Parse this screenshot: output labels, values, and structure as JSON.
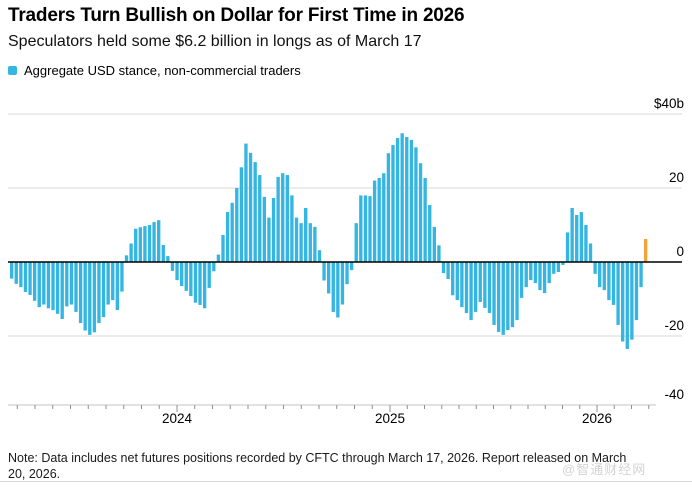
{
  "header": {
    "title": "Traders Turn Bullish on Dollar for First Time in 2026",
    "subtitle": "Speculators held some $6.2 billion in longs as of March 17"
  },
  "legend": {
    "label": "Aggregate USD stance, non-commercial traders",
    "swatch_color": "#35b6e2"
  },
  "chart_data": {
    "type": "bar",
    "title": "Aggregate USD stance, non-commercial traders",
    "ylabel": "",
    "xlabel": "",
    "unit": "$ billions",
    "ylim": [
      -40,
      40
    ],
    "grid": true,
    "legend_position": "top-left",
    "y_ticks": [
      {
        "value": 40,
        "label": "$40b"
      },
      {
        "value": 20,
        "label": "20"
      },
      {
        "value": 0,
        "label": "0"
      },
      {
        "value": -20,
        "label": "-20"
      },
      {
        "value": -40,
        "label": "-40"
      }
    ],
    "x_year_labels": [
      "2024",
      "2025",
      "2026"
    ],
    "frequency": "weekly",
    "bar_color": "#35b6e2",
    "highlight_color": "#f0a43a",
    "highlight_last": true,
    "last_value_note": "6.2 (USD net long as of March 17, 2026, shown in orange)",
    "values": [
      -4.5,
      -5.9,
      -6.8,
      -8.1,
      -8.9,
      -10.5,
      -12.2,
      -11.5,
      -12.5,
      -13,
      -14,
      -15.4,
      -12,
      -11.5,
      -13.5,
      -16.5,
      -18.5,
      -19.7,
      -19,
      -16.5,
      -14.9,
      -11.5,
      -10.3,
      -13,
      -8,
      1.8,
      5,
      9,
      9.4,
      9.7,
      10,
      10.8,
      11.3,
      4.6,
      1.6,
      -2.4,
      -4.9,
      -6.5,
      -7.8,
      -9.2,
      -11,
      -11.6,
      -12.5,
      -7,
      -2.5,
      2,
      7.3,
      13.5,
      16,
      20,
      25.6,
      32,
      29.5,
      27,
      23.5,
      17.6,
      12,
      17.3,
      23,
      24,
      23.5,
      18,
      12,
      10.5,
      14.6,
      10.5,
      9.5,
      3.2,
      -5,
      -8.5,
      -13.5,
      -15,
      -11.5,
      -6,
      -2.2,
      10.5,
      18,
      18,
      17.8,
      22,
      22.7,
      24,
      29.4,
      31.6,
      33.5,
      34.8,
      33.8,
      33,
      31,
      26.7,
      22.7,
      15.4,
      9.5,
      4.5,
      -3,
      -4.6,
      -9,
      -10.3,
      -12.2,
      -13.8,
      -15.7,
      -13.5,
      -10.8,
      -12.4,
      -13.8,
      -17,
      -18.9,
      -19.7,
      -18.4,
      -17.6,
      -15.7,
      -9.7,
      -6.8,
      -4.9,
      -5.7,
      -7.6,
      -8.4,
      -5.7,
      -3.2,
      -2.7,
      -0.8,
      8,
      14.6,
      12.7,
      13.5,
      10,
      5,
      -3.2,
      -6.8,
      -7.6,
      -10.3,
      -11.6,
      -17,
      -21.5,
      -23.5,
      -21,
      -15.7,
      -6.8,
      6.2
    ]
  },
  "footer": {
    "note_line1": "Note: Data includes net futures positions recorded by CFTC through March 17, 2026. Report released on March",
    "note_line2": "20, 2026.",
    "watermark": "@智通财经网"
  }
}
